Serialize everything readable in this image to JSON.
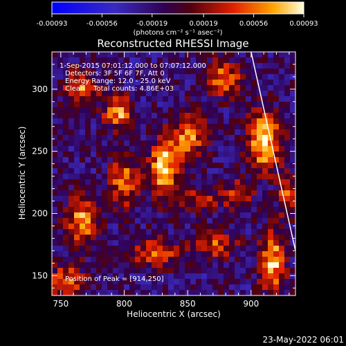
{
  "colorbar": {
    "ticks": [
      "-0.00093",
      "-0.00056",
      "-0.00019",
      "0.00019",
      "0.00056",
      "0.00093"
    ],
    "unit_label": "(photons cm⁻² s⁻¹ asec⁻²)"
  },
  "chart_data": {
    "type": "heatmap",
    "title": "Reconstructed RHESSI Image",
    "xlabel": "Heliocentric X (arcsec)",
    "ylabel": "Heliocentric Y (arcsec)",
    "xlim": [
      743,
      935
    ],
    "ylim": [
      134,
      330
    ],
    "x_ticks": [
      "750",
      "800",
      "850",
      "900"
    ],
    "y_ticks": [
      "150",
      "200",
      "250",
      "300"
    ],
    "x_tick_values": [
      750,
      800,
      850,
      900
    ],
    "y_tick_values": [
      150,
      200,
      250,
      300
    ],
    "color_range": [
      -0.00093,
      0.00093
    ],
    "annotations": [
      "1-Sep-2015 07:01:12.000 to 07:07:12.000",
      "Detectors: 3F 5F 6F 7F, Att 0",
      "Energy Range: 12.0 - 25.0 keV",
      "Clean    Total counts: 4.86E+03"
    ],
    "peak_label": "Position of Peak = [914,250]",
    "peak": [
      914,
      250
    ],
    "sources": [
      {
        "x": 910,
        "y": 258,
        "sx": 9,
        "sy": 16,
        "amp": 1.0
      },
      {
        "x": 831,
        "y": 236,
        "sx": 8,
        "sy": 16,
        "amp": 0.95
      },
      {
        "x": 795,
        "y": 282,
        "sx": 8,
        "sy": 9,
        "amp": 0.8
      },
      {
        "x": 851,
        "y": 263,
        "sx": 9,
        "sy": 14,
        "amp": 0.7
      },
      {
        "x": 878,
        "y": 308,
        "sx": 10,
        "sy": 10,
        "amp": 0.7
      },
      {
        "x": 766,
        "y": 300,
        "sx": 10,
        "sy": 9,
        "amp": 0.65
      },
      {
        "x": 767,
        "y": 194,
        "sx": 9,
        "sy": 13,
        "amp": 0.75
      },
      {
        "x": 800,
        "y": 225,
        "sx": 8,
        "sy": 14,
        "amp": 0.7
      },
      {
        "x": 825,
        "y": 168,
        "sx": 14,
        "sy": 8,
        "amp": 0.6
      },
      {
        "x": 872,
        "y": 175,
        "sx": 12,
        "sy": 8,
        "amp": 0.55
      },
      {
        "x": 917,
        "y": 160,
        "sx": 7,
        "sy": 18,
        "amp": 0.85
      },
      {
        "x": 890,
        "y": 215,
        "sx": 8,
        "sy": 10,
        "amp": 0.45
      },
      {
        "x": 755,
        "y": 146,
        "sx": 10,
        "sy": 10,
        "amp": 0.6
      },
      {
        "x": 860,
        "y": 212,
        "sx": 12,
        "sy": 6,
        "amp": 0.45
      },
      {
        "x": 928,
        "y": 215,
        "sx": 5,
        "sy": 12,
        "amp": 0.55
      }
    ],
    "limb": [
      [
        900,
        330
      ],
      [
        935,
        170
      ]
    ]
  },
  "footer": {
    "timestamp": "23-May-2022 06:01"
  }
}
